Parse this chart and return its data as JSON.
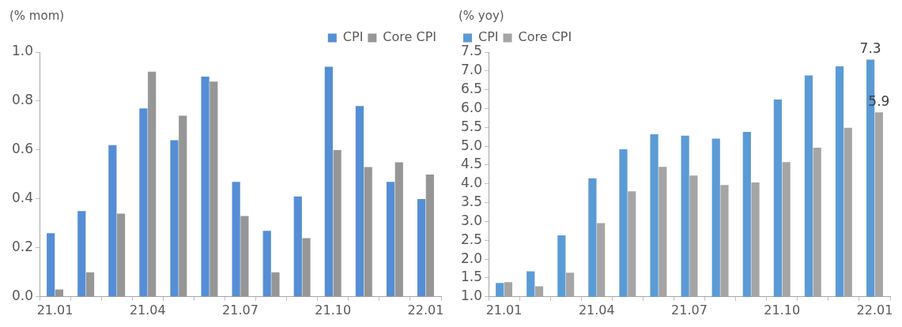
{
  "chart_data": [
    {
      "type": "bar",
      "ylabel": "(% mom)",
      "categories": [
        "21.01",
        null,
        null,
        "21.04",
        null,
        null,
        "21.07",
        null,
        null,
        "21.10",
        null,
        null,
        "22.01"
      ],
      "ylim": [
        0,
        1.0
      ],
      "yticks": [
        {
          "value": 0,
          "label": "0.0"
        },
        {
          "value": 0.2,
          "label": "0.2"
        },
        {
          "value": 0.4,
          "label": "0.4"
        },
        {
          "value": 0.6,
          "label": "0.6"
        },
        {
          "value": 0.8,
          "label": "0.8"
        },
        {
          "value": 1.0,
          "label": "1.0"
        }
      ],
      "grid": false,
      "legend": "top right",
      "series": [
        {
          "name": "CPI",
          "color": "#558ed5",
          "values": [
            0.26,
            0.35,
            0.62,
            0.77,
            0.64,
            0.9,
            0.47,
            0.27,
            0.41,
            0.94,
            0.78,
            0.47,
            0.4
          ]
        },
        {
          "name": "Core CPI",
          "color": "#969696",
          "values": [
            0.03,
            0.1,
            0.34,
            0.92,
            0.74,
            0.88,
            0.33,
            0.1,
            0.24,
            0.6,
            0.53,
            0.55,
            0.5
          ]
        }
      ]
    },
    {
      "type": "bar",
      "ylabel": "(% yoy)",
      "categories": [
        "21.01",
        null,
        null,
        "21.04",
        null,
        null,
        "21.07",
        null,
        null,
        "21.10",
        null,
        null,
        "22.01"
      ],
      "ylim": [
        1.0,
        7.5
      ],
      "yticks": [
        {
          "value": 1,
          "label": "1.0"
        },
        {
          "value": 1.5,
          "label": "1.5"
        },
        {
          "value": 2,
          "label": "2.0"
        },
        {
          "value": 2.5,
          "label": "2.5"
        },
        {
          "value": 3,
          "label": "3.0"
        },
        {
          "value": 3.5,
          "label": "3.5"
        },
        {
          "value": 4,
          "label": "4.0"
        },
        {
          "value": 4.5,
          "label": "4.5"
        },
        {
          "value": 5,
          "label": "5.0"
        },
        {
          "value": 5.5,
          "label": "5.5"
        },
        {
          "value": 6,
          "label": "6.0"
        },
        {
          "value": 6.5,
          "label": "6.5"
        },
        {
          "value": 7,
          "label": "7.0"
        },
        {
          "value": 7.5,
          "label": "7.5"
        }
      ],
      "grid": false,
      "legend": "top left",
      "series": [
        {
          "name": "CPI",
          "color": "#5b9bd5",
          "values": [
            1.37,
            1.68,
            2.63,
            4.15,
            4.92,
            5.32,
            5.28,
            5.2,
            5.38,
            6.24,
            6.88,
            7.12,
            7.3
          ],
          "value_labels": [
            null,
            null,
            null,
            null,
            null,
            null,
            null,
            null,
            null,
            null,
            null,
            null,
            "7.3"
          ]
        },
        {
          "name": "Core CPI",
          "color": "#a5a5a5",
          "values": [
            1.39,
            1.28,
            1.64,
            2.96,
            3.8,
            4.45,
            4.22,
            3.97,
            4.04,
            4.58,
            4.96,
            5.49,
            5.9
          ],
          "value_labels": [
            null,
            null,
            null,
            null,
            null,
            null,
            null,
            null,
            null,
            null,
            null,
            null,
            "5.9"
          ]
        }
      ]
    }
  ]
}
